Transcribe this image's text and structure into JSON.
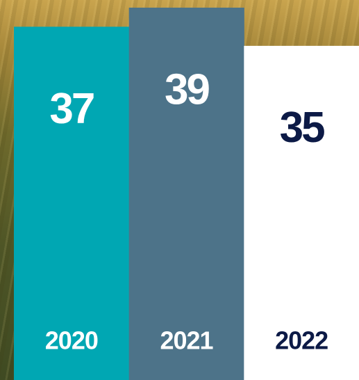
{
  "chart_data": {
    "type": "bar",
    "categories": [
      "2020",
      "2021",
      "2022"
    ],
    "values": [
      37,
      39,
      35
    ],
    "colors": [
      "#00a7b3",
      "#4d7389",
      "#ffffff"
    ],
    "label_colors": [
      "#ffffff",
      "#ffffff",
      "#0c1a46"
    ]
  }
}
